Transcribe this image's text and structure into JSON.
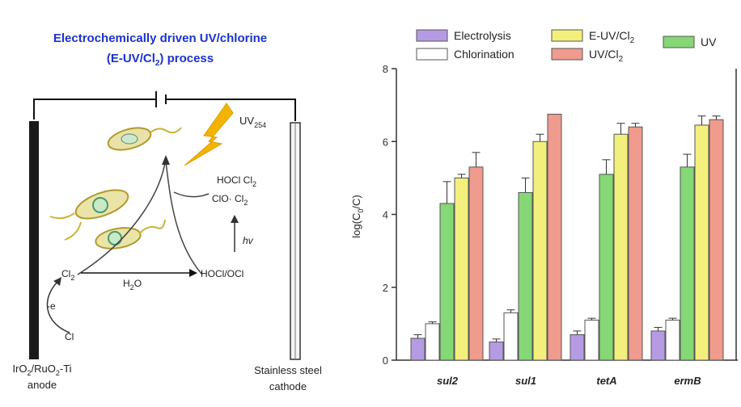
{
  "diagram": {
    "title_line1": "Electrochemically driven UV/chlorine",
    "title_line2": "(E-UV/Cl",
    "title_line2_sub": "2",
    "title_line2_end": ") process",
    "uv_label": "UV",
    "uv_sub": "254",
    "hocl_cl2": "HOCl Cl",
    "hocl_cl2_sub": "2",
    "clo_cl2": "ClO· Cl",
    "clo_cl2_sub": "2",
    "hv": "hv",
    "cl2": "Cl",
    "cl2_sub": "2",
    "h2o": "H",
    "h2o_sub": "2",
    "h2o_end": "O",
    "hocl_ocl": "HOCl/OCl",
    "e_label": "-e",
    "cl_minus": "Cl",
    "anode_line1": "IrO",
    "anode_line1_sub1": "2",
    "anode_line1_mid": "/RuO",
    "anode_line1_sub2": "2",
    "anode_line1_end": "-Ti",
    "anode_line2": "anode",
    "cathode_line1": "Stainless steel",
    "cathode_line2": "cathode"
  },
  "legend": {
    "electrolysis": "Electrolysis",
    "chlorination": "Chlorination",
    "euv_prefix": "E-UV/Cl",
    "euv_sub": "2",
    "uv_prefix": "UV/Cl",
    "uv_sub": "2",
    "uv": "UV"
  },
  "colors": {
    "Electrolysis": "#b59be3",
    "Chlorination": "#ffffff",
    "E-UV/Cl2": "#f3ef7c",
    "UV/Cl2": "#ef9b8e",
    "UV": "#86d776"
  },
  "chart_data": {
    "type": "bar",
    "ylabel_prefix": "log(C",
    "ylabel_sub0": "0",
    "ylabel_mid": "/C",
    "ylabel_end": ")",
    "ylim": [
      0,
      8
    ],
    "yticks": [
      "0",
      "2",
      "4",
      "6",
      "8"
    ],
    "categories": [
      "sul2",
      "sul1",
      "tetA",
      "ermB"
    ],
    "series": [
      {
        "name": "Electrolysis",
        "values": [
          0.6,
          0.5,
          0.7,
          0.8
        ],
        "errors": [
          0.1,
          0.08,
          0.1,
          0.1
        ]
      },
      {
        "name": "Chlorination",
        "values": [
          1.0,
          1.3,
          1.1,
          1.1
        ],
        "errors": [
          0.05,
          0.08,
          0.05,
          0.05
        ]
      },
      {
        "name": "UV",
        "values": [
          4.3,
          4.6,
          5.1,
          5.3
        ],
        "errors": [
          0.6,
          0.4,
          0.4,
          0.35
        ]
      },
      {
        "name": "E-UV/Cl2",
        "values": [
          5.0,
          6.0,
          6.2,
          6.45
        ],
        "errors": [
          0.1,
          0.2,
          0.3,
          0.25
        ]
      },
      {
        "name": "UV/Cl2",
        "values": [
          5.3,
          6.75,
          6.4,
          6.6
        ],
        "errors": [
          0.4,
          0.0,
          0.1,
          0.1
        ]
      }
    ]
  }
}
